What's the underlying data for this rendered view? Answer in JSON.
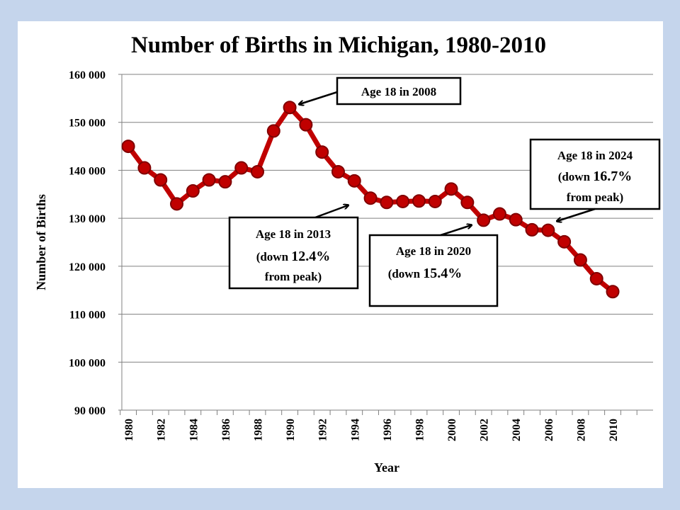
{
  "chart_data": {
    "type": "line",
    "title": "Number of Births in Michigan, 1980-2010",
    "xlabel": "Year",
    "ylabel": "Number of Births",
    "ylim": [
      90000,
      160000
    ],
    "yticks": [
      90000,
      100000,
      110000,
      120000,
      130000,
      140000,
      150000,
      160000
    ],
    "ytick_labels": [
      "90 000",
      "100 000",
      "110 000",
      "120 000",
      "130 000",
      "140 000",
      "150 000",
      "160 000"
    ],
    "xticks": [
      "1980",
      "1982",
      "1984",
      "1986",
      "1988",
      "1990",
      "1992",
      "1994",
      "1996",
      "1998",
      "2000",
      "2002",
      "2004",
      "2006",
      "2008",
      "2010"
    ],
    "grid": true,
    "legend": "none",
    "series_color": "#c00000",
    "marker_edge_color": "#800000",
    "x": [
      1980,
      1981,
      1982,
      1983,
      1984,
      1985,
      1986,
      1987,
      1988,
      1989,
      1990,
      1991,
      1992,
      1993,
      1994,
      1995,
      1996,
      1997,
      1998,
      1999,
      2000,
      2001,
      2002,
      2003,
      2004,
      2005,
      2006,
      2007,
      2008,
      2009,
      2010
    ],
    "y": [
      145000,
      140500,
      138000,
      133000,
      135700,
      138000,
      137600,
      140500,
      139700,
      148200,
      153100,
      149500,
      143800,
      139700,
      137800,
      134200,
      133300,
      133500,
      133600,
      133500,
      136100,
      133300,
      129600,
      130900,
      129700,
      127600,
      127500,
      125100,
      121300,
      117400,
      114700
    ],
    "annotations": [
      {
        "id": "a2008",
        "lines": [
          "Age 18 in 2008"
        ],
        "points_to_year": 1990
      },
      {
        "id": "a2013",
        "lines": [
          "Age 18 in 2013",
          "(down ",
          "12.4%",
          "from peak)"
        ],
        "points_to_year": 1995
      },
      {
        "id": "a2020",
        "lines": [
          "Age 18 in 2020",
          "(down ",
          "15.4%"
        ],
        "points_to_year": 2002
      },
      {
        "id": "a2024",
        "lines": [
          "Age 18 in 2024",
          "(down ",
          "16.7%",
          "from peak)"
        ],
        "points_to_year": 2006
      }
    ]
  }
}
